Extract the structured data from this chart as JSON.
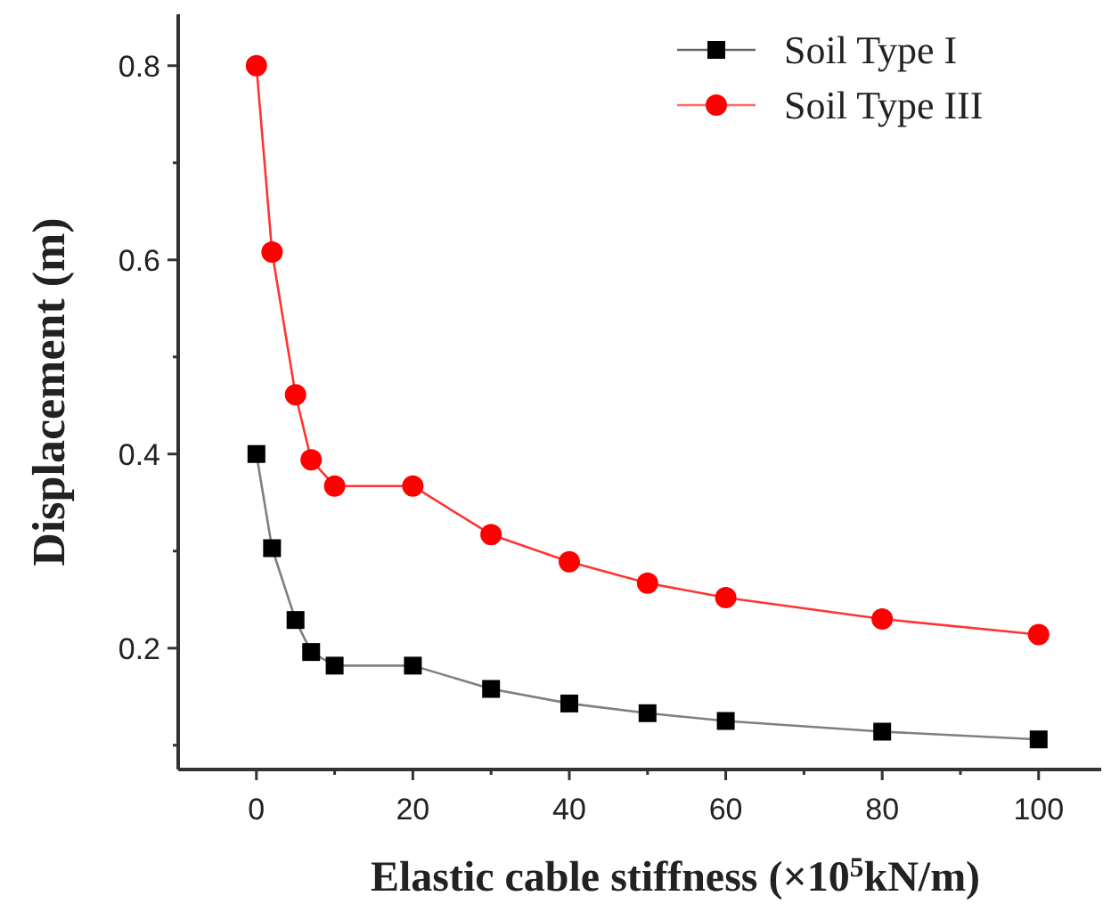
{
  "chart_data": {
    "type": "line",
    "xlabel": "Elastic cable stiffness (×10$^{5}$kN/m)",
    "ylabel": "Displacement (m)",
    "x": [
      0,
      2,
      5,
      7,
      10,
      20,
      30,
      40,
      50,
      60,
      80,
      100
    ],
    "series": [
      {
        "name": "Soil Type I",
        "color": "#000000",
        "marker": "square",
        "values": [
          0.4,
          0.303,
          0.229,
          0.196,
          0.182,
          0.182,
          0.158,
          0.143,
          0.133,
          0.125,
          0.114,
          0.106
        ]
      },
      {
        "name": "Soil Type III",
        "color": "#ff0000",
        "marker": "circle",
        "values": [
          0.8,
          0.608,
          0.461,
          0.394,
          0.367,
          0.367,
          0.317,
          0.289,
          0.267,
          0.252,
          0.23,
          0.214
        ]
      }
    ],
    "xlim": [
      -10,
      108
    ],
    "ylim": [
      0.075,
      0.853
    ],
    "xticks": [
      0,
      {
        "value": 10,
        "label": null
      },
      20,
      {
        "value": 30,
        "label": null
      },
      40,
      {
        "value": 50,
        "label": null
      },
      60,
      {
        "value": 70,
        "label": null
      },
      80,
      {
        "value": 90,
        "label": null
      },
      100
    ],
    "yticks": [
      {
        "value": 0.1,
        "label": null
      },
      0.2,
      {
        "value": 0.3,
        "label": null
      },
      0.4,
      {
        "value": 0.5,
        "label": null
      },
      0.6,
      {
        "value": 0.7,
        "label": null
      },
      0.8
    ],
    "legend": "top right",
    "grid": false
  }
}
